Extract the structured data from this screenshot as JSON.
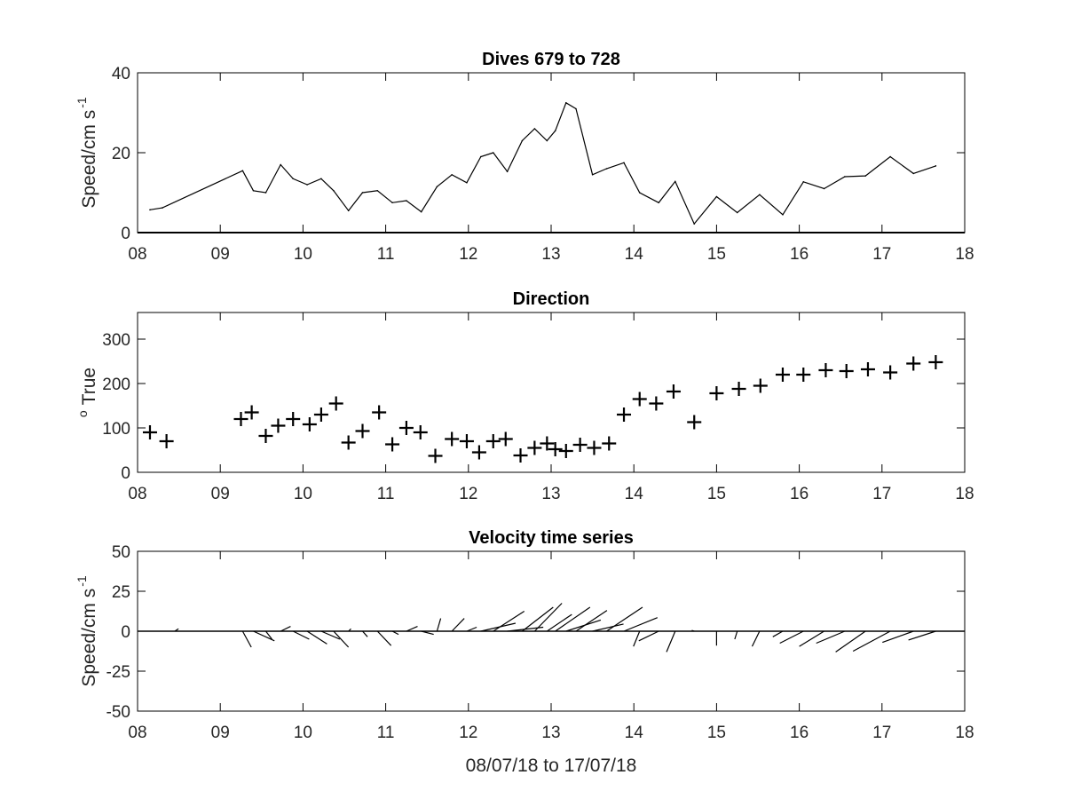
{
  "chart_data": [
    {
      "type": "line",
      "title": "Dives 679 to 728",
      "ylabel": "Speed/cm s",
      "ylabel_exponent": "-1",
      "xlim": [
        8,
        18
      ],
      "ylim": [
        0,
        40
      ],
      "xticks": [
        8,
        9,
        10,
        11,
        12,
        13,
        14,
        15,
        16,
        17,
        18
      ],
      "xtick_labels": [
        "08",
        "09",
        "10",
        "11",
        "12",
        "13",
        "14",
        "15",
        "16",
        "17",
        "18"
      ],
      "yticks": [
        0,
        20,
        40
      ],
      "ytick_labels": [
        "0",
        "20",
        "40"
      ],
      "zero_line": true,
      "x": [
        8.15,
        8.3,
        9.27,
        9.4,
        9.55,
        9.73,
        9.88,
        10.05,
        10.22,
        10.37,
        10.55,
        10.72,
        10.9,
        11.08,
        11.25,
        11.43,
        11.62,
        11.8,
        11.98,
        12.15,
        12.3,
        12.47,
        12.65,
        12.8,
        12.95,
        13.05,
        13.18,
        13.3,
        13.5,
        13.67,
        13.88,
        14.07,
        14.3,
        14.5,
        14.73,
        15.0,
        15.25,
        15.52,
        15.8,
        16.05,
        16.3,
        16.55,
        16.8,
        17.1,
        17.38,
        17.65
      ],
      "y": [
        5.7,
        6.2,
        15.5,
        10.5,
        10.0,
        17.0,
        13.5,
        12.0,
        13.5,
        10.5,
        5.5,
        10.0,
        10.5,
        7.5,
        8.0,
        5.2,
        11.5,
        14.5,
        12.5,
        19.0,
        20.0,
        15.3,
        23.0,
        26.0,
        23.0,
        25.5,
        32.5,
        31.0,
        14.5,
        16.0,
        17.5,
        10.0,
        7.5,
        12.8,
        2.2,
        9.0,
        5.0,
        9.5,
        4.5,
        12.7,
        11.0,
        14.0,
        14.2,
        19.0,
        14.8,
        16.7
      ]
    },
    {
      "type": "scatter",
      "title": "Direction",
      "ylabel": "True",
      "ylabel_prefix": "o",
      "marker": "+",
      "xlim": [
        8,
        18
      ],
      "ylim": [
        0,
        360
      ],
      "xticks": [
        8,
        9,
        10,
        11,
        12,
        13,
        14,
        15,
        16,
        17,
        18
      ],
      "xtick_labels": [
        "08",
        "09",
        "10",
        "11",
        "12",
        "13",
        "14",
        "15",
        "16",
        "17",
        "18"
      ],
      "yticks": [
        0,
        100,
        200,
        300
      ],
      "ytick_labels": [
        "0",
        "100",
        "200",
        "300"
      ],
      "x": [
        8.15,
        8.35,
        9.25,
        9.38,
        9.55,
        9.7,
        9.88,
        10.08,
        10.22,
        10.4,
        10.55,
        10.72,
        10.92,
        11.08,
        11.25,
        11.42,
        11.6,
        11.8,
        11.98,
        12.13,
        12.3,
        12.45,
        12.63,
        12.8,
        12.95,
        13.05,
        13.18,
        13.35,
        13.52,
        13.7,
        13.88,
        14.07,
        14.27,
        14.48,
        14.73,
        15.0,
        15.27,
        15.53,
        15.8,
        16.05,
        16.32,
        16.57,
        16.83,
        17.1,
        17.38,
        17.65
      ],
      "y": [
        90,
        70,
        120,
        135,
        82,
        105,
        120,
        108,
        130,
        155,
        67,
        93,
        135,
        63,
        100,
        90,
        37,
        75,
        70,
        45,
        70,
        75,
        38,
        55,
        65,
        52,
        48,
        62,
        55,
        65,
        130,
        165,
        155,
        182,
        113,
        178,
        188,
        195,
        220,
        220,
        230,
        228,
        232,
        225,
        245,
        248
      ]
    },
    {
      "type": "quiver",
      "title": "Velocity time series",
      "ylabel": "Speed/cm s",
      "ylabel_exponent": "-1",
      "xlabel": "08/07/18 to 17/07/18",
      "xlim": [
        8,
        18
      ],
      "ylim": [
        -50,
        50
      ],
      "xticks": [
        8,
        9,
        10,
        11,
        12,
        13,
        14,
        15,
        16,
        17,
        18
      ],
      "xtick_labels": [
        "08",
        "09",
        "10",
        "11",
        "12",
        "13",
        "14",
        "15",
        "16",
        "17",
        "18"
      ],
      "yticks": [
        -50,
        -25,
        0,
        25,
        50
      ],
      "ytick_labels": [
        "-50",
        "-25",
        "0",
        "25",
        "50"
      ],
      "x_units_per_speed_unit": 0.03,
      "zero_line": true,
      "x": [
        8.45,
        9.27,
        9.4,
        9.55,
        9.73,
        9.88,
        10.05,
        10.22,
        10.37,
        10.55,
        10.72,
        10.9,
        11.08,
        11.25,
        11.43,
        11.62,
        11.8,
        11.98,
        12.15,
        12.3,
        12.47,
        12.65,
        12.8,
        12.95,
        13.05,
        13.18,
        13.3,
        13.5,
        13.67,
        13.88,
        14.07,
        14.3,
        14.5,
        14.73,
        15.0,
        15.25,
        15.52,
        15.8,
        16.05,
        16.3,
        16.55,
        16.8,
        17.1,
        17.38,
        17.65
      ],
      "u": [
        1.5,
        3.5,
        8.5,
        2.5,
        4.0,
        6.5,
        8.0,
        7.5,
        6.0,
        1.0,
        2.0,
        5.5,
        2.5,
        4.5,
        5.0,
        1.5,
        5.0,
        4.0,
        14.0,
        12.5,
        14.5,
        12.5,
        11.0,
        10.0,
        14.0,
        14.0,
        12.5,
        12.5,
        14.5,
        13.5,
        -2.5,
        -8.0,
        -3.5,
        -1.0,
        0.0,
        -1.0,
        -3.0,
        -4.0,
        -9.5,
        -10.0,
        -11.5,
        -12.0,
        -15.0,
        -12.5,
        -11.0
      ],
      "v": [
        1.5,
        -10.0,
        -6.0,
        -5.0,
        3.0,
        -5.0,
        -8.0,
        -5.0,
        -10.0,
        1.5,
        -3.5,
        -9.0,
        -2.0,
        3.0,
        -2.0,
        8.0,
        8.0,
        2.5,
        5.0,
        12.5,
        2.5,
        15.0,
        17.5,
        10.5,
        15.0,
        7.0,
        13.0,
        4.5,
        15.0,
        8.5,
        -9.5,
        -6.0,
        -13.0,
        0.5,
        -9.0,
        -5.0,
        -9.5,
        -3.5,
        -7.5,
        -9.5,
        -7.5,
        -13.0,
        -12.5,
        -7.0,
        -5.5
      ]
    }
  ]
}
